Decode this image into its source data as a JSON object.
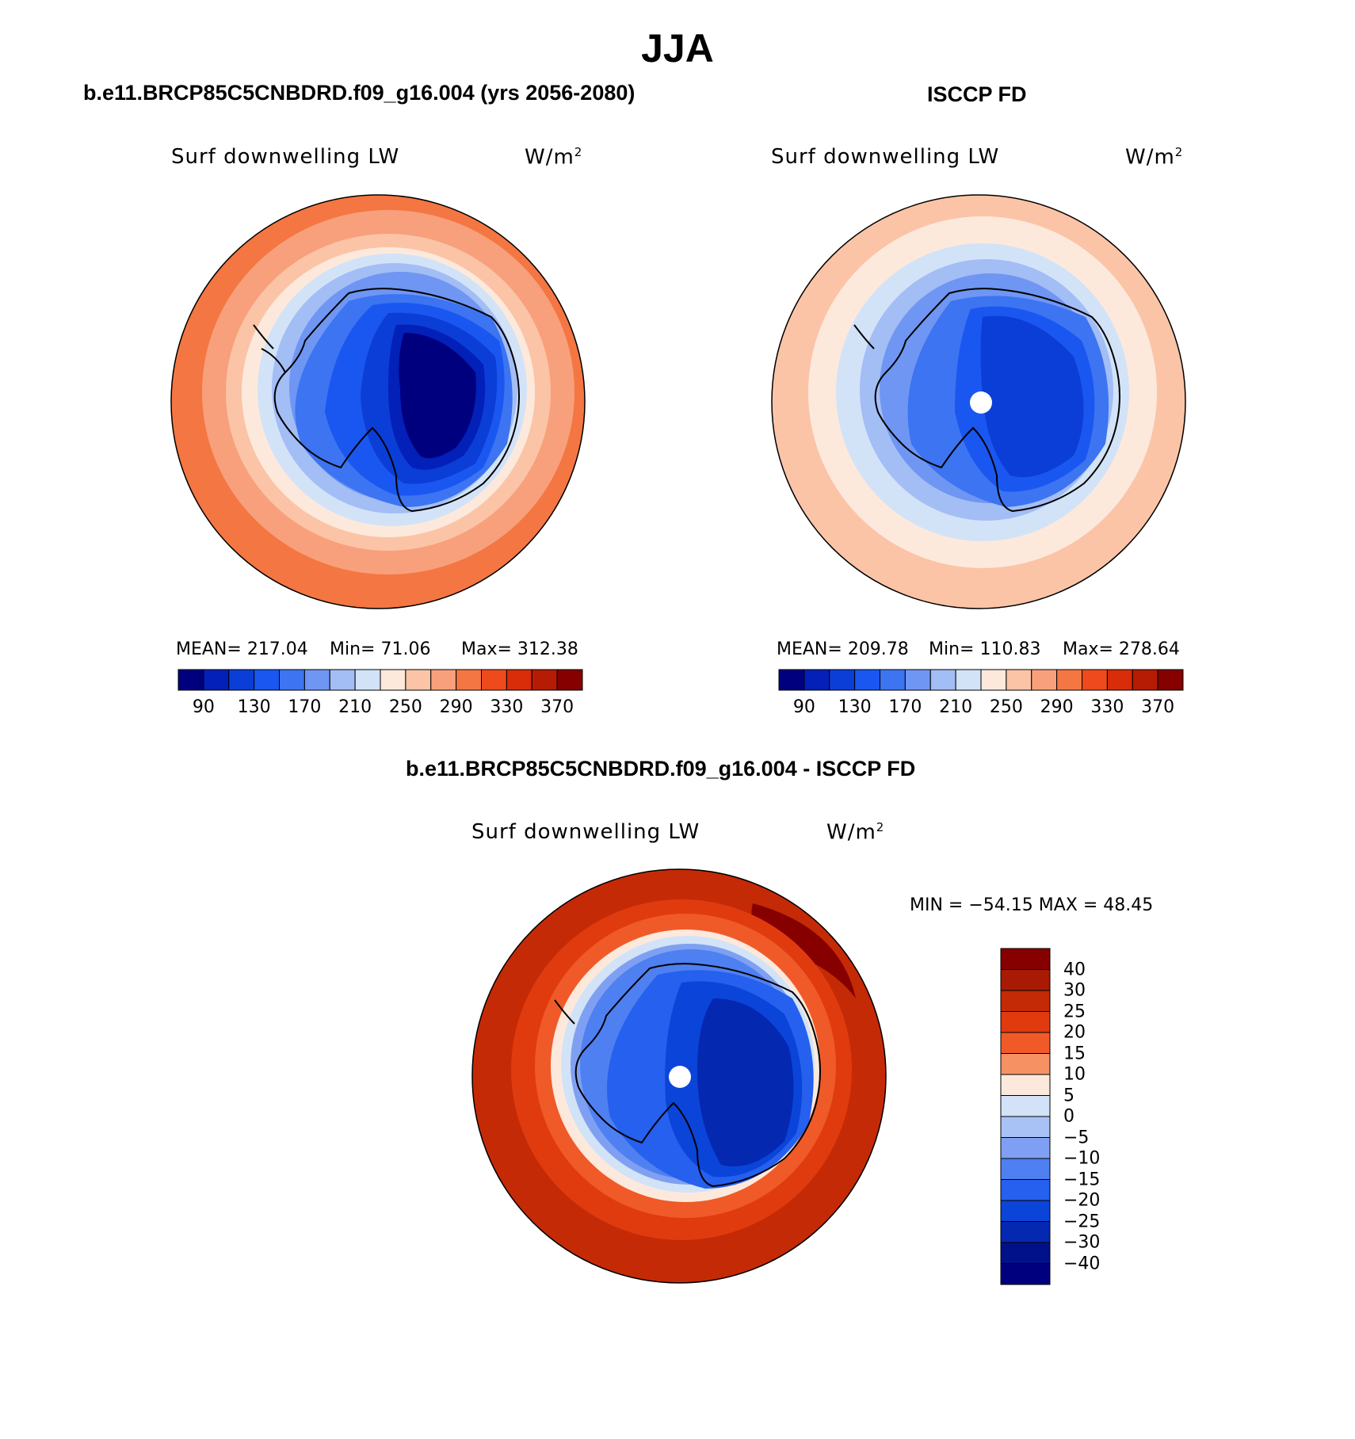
{
  "figure": {
    "title": "JJA"
  },
  "panels": [
    {
      "heading": "b.e11.BRCP85C5CNBDRD.f09_g16.004 (yrs 2056-2080)",
      "var_label": "Surf downwelling LW",
      "units_base": "W/m",
      "units_exp": "2",
      "stats": {
        "mean": "MEAN= 217.04",
        "min": "Min=  71.06",
        "max": "Max= 312.38"
      },
      "colorbar_ticks": [
        "90",
        "130",
        "170",
        "210",
        "250",
        "290",
        "330",
        "370"
      ],
      "has_pole_hole": false
    },
    {
      "heading": "ISCCP FD",
      "var_label": "Surf downwelling LW",
      "units_base": "W/m",
      "units_exp": "2",
      "stats": {
        "mean": "MEAN= 209.78",
        "min": "Min= 110.83",
        "max": "Max= 278.64"
      },
      "colorbar_ticks": [
        "90",
        "130",
        "170",
        "210",
        "250",
        "290",
        "330",
        "370"
      ],
      "has_pole_hole": true
    },
    {
      "heading": "b.e11.BRCP85C5CNBDRD.f09_g16.004 - ISCCP FD",
      "var_label": "Surf downwelling LW",
      "units_base": "W/m",
      "units_exp": "2",
      "stats": {
        "minmax": "MIN = −54.15 MAX =  48.45"
      },
      "colorbar_ticks": [
        "40",
        "30",
        "25",
        "20",
        "15",
        "10",
        "5",
        "0",
        "−5",
        "−10",
        "−15",
        "−20",
        "−25",
        "−30",
        "−40"
      ],
      "has_pole_hole": true
    }
  ],
  "colors": {
    "seq": [
      "#00007f",
      "#0320b8",
      "#0b3ed6",
      "#1a57f0",
      "#3c74f2",
      "#6f96f2",
      "#a3bdf5",
      "#d2e3f8",
      "#fde9dc",
      "#fbc4a7",
      "#f8a07b",
      "#f47642",
      "#ee4a1d",
      "#d92c08",
      "#b51c03",
      "#860000"
    ],
    "diff": [
      "#860000",
      "#a81a03",
      "#c52a06",
      "#e03b0e",
      "#f05a28",
      "#f69164",
      "#fde9dc",
      "#d2e3f8",
      "#a9c2f5",
      "#7fa0f2",
      "#4f80f1",
      "#2560ee",
      "#0b44d8",
      "#0428b0",
      "#00118a",
      "#00007f"
    ]
  }
}
